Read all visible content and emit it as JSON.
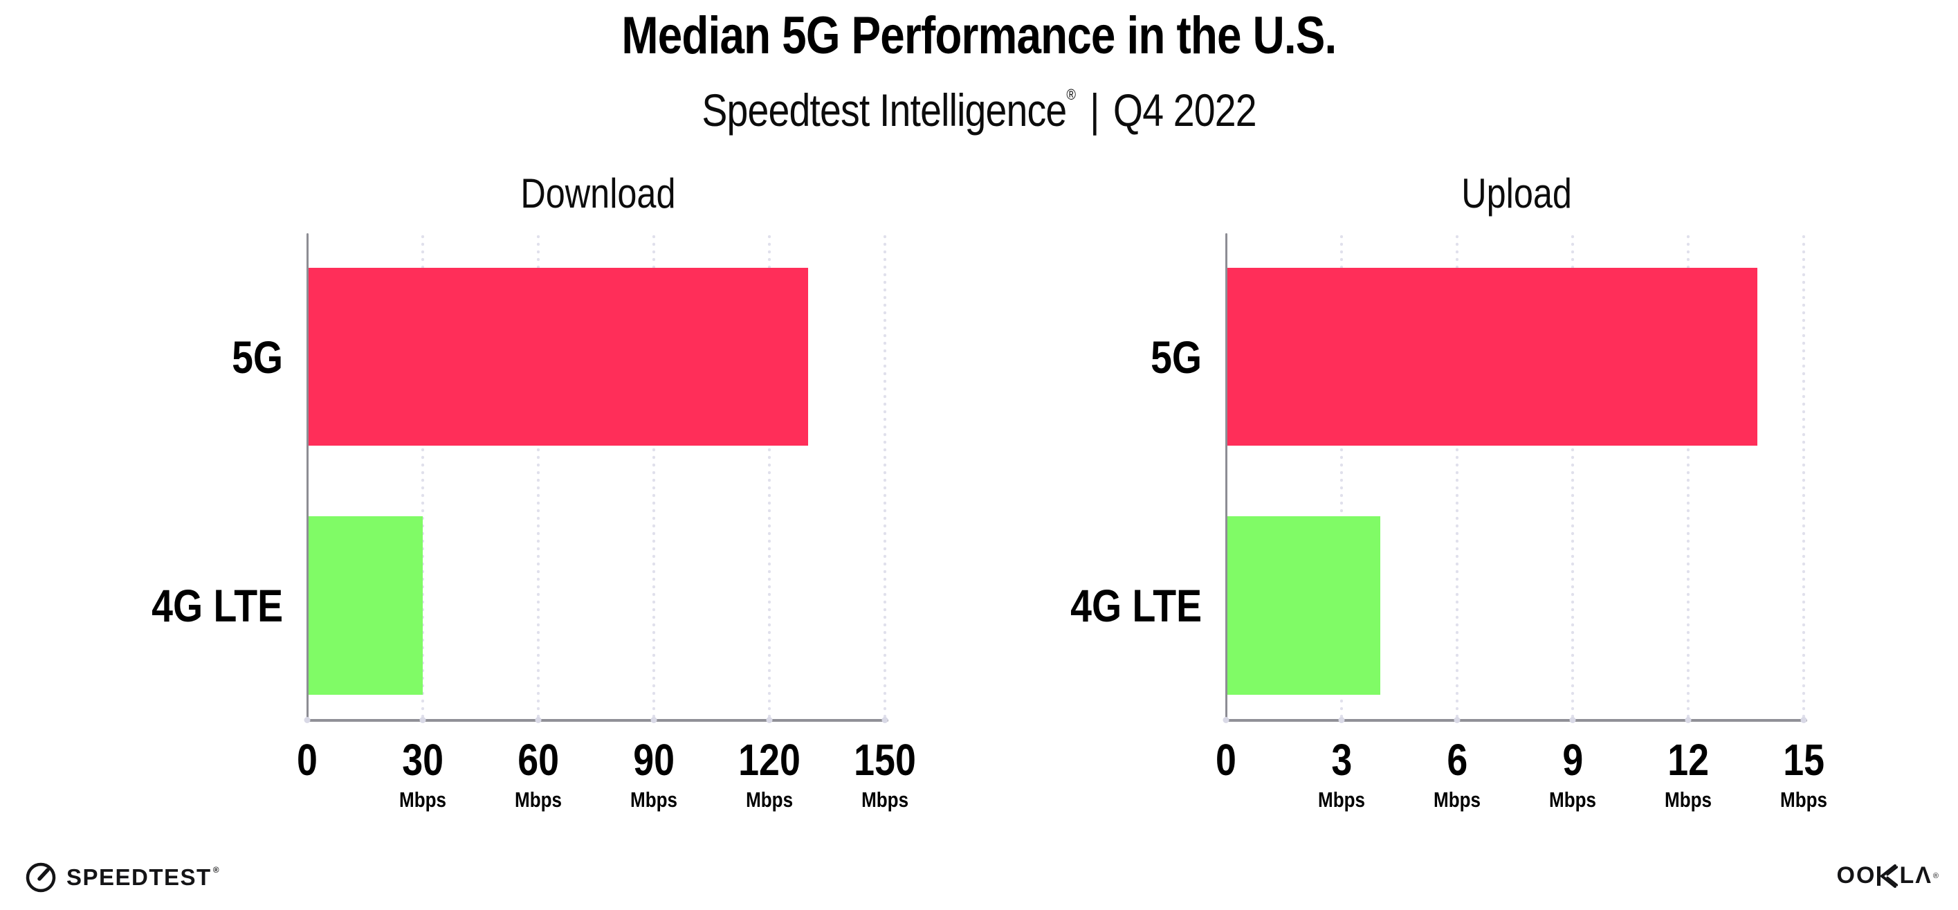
{
  "header": {
    "title": "Median 5G Performance in the U.S.",
    "subtitle_brand": "Speedtest Intelligence",
    "subtitle_reg": "®",
    "subtitle_divider": "|",
    "subtitle_period": "Q4 2022"
  },
  "chart_data": [
    {
      "type": "bar",
      "orientation": "horizontal",
      "title": "Download",
      "categories": [
        "5G",
        "4G LTE"
      ],
      "values": [
        130,
        30
      ],
      "unit": "Mbps",
      "xlim": [
        0,
        150
      ],
      "xticks": [
        0,
        30,
        60,
        90,
        120,
        150
      ],
      "bar_colors": [
        "#FF2E59",
        "#80FB66"
      ],
      "grid": "dotted-vertical",
      "legend": "none"
    },
    {
      "type": "bar",
      "orientation": "horizontal",
      "title": "Upload",
      "categories": [
        "5G",
        "4G LTE"
      ],
      "values": [
        13.8,
        4
      ],
      "unit": "Mbps",
      "xlim": [
        0,
        15
      ],
      "xticks": [
        0,
        3,
        6,
        9,
        12,
        15
      ],
      "bar_colors": [
        "#FF2E59",
        "#80FB66"
      ],
      "grid": "dotted-vertical",
      "legend": "none"
    }
  ],
  "colors": {
    "bar_5g": "#FF2E59",
    "bar_4g_lte": "#80FB66",
    "gridline": "#E0E0EC",
    "axis": "#8D8D94",
    "text": "#000000"
  },
  "footer": {
    "speedtest_label": "SPEEDTEST",
    "speedtest_reg": "®",
    "ookla_left": "OO",
    "ookla_right": "LΛ",
    "ookla_reg": "®"
  }
}
